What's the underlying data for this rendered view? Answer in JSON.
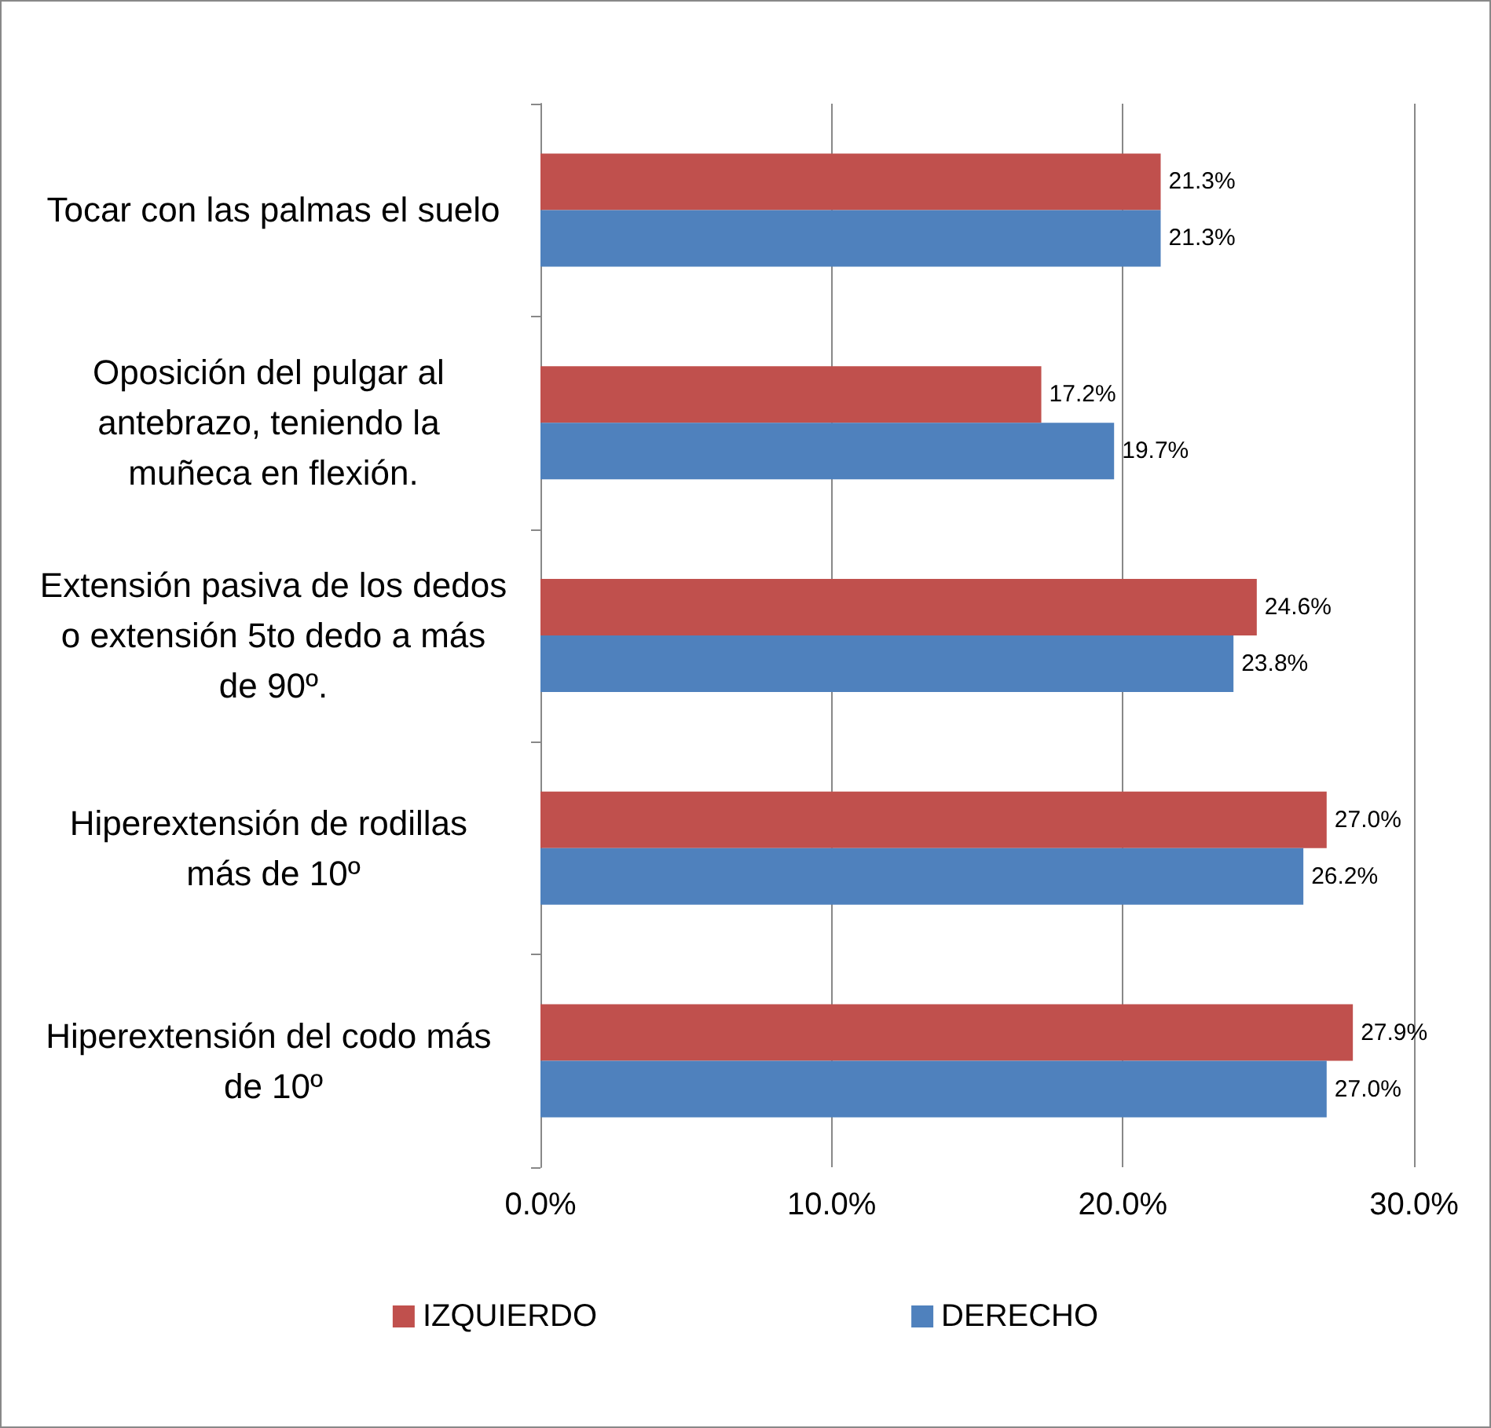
{
  "chart_data": {
    "type": "bar",
    "orientation": "horizontal",
    "categories": [
      "Tocar con las palmas el suelo",
      "Oposición del pulgar al antebrazo, teniendo la muñeca en flexión.",
      "Extensión pasiva de los dedos o extensión 5to dedo a más de 90º.",
      "Hiperextensión de rodillas más de 10º",
      "Hiperextensión del codo más de 10º"
    ],
    "series": [
      {
        "name": "IZQUIERDO",
        "color": "#c0504d",
        "values": [
          21.3,
          17.2,
          24.6,
          27.0,
          27.9
        ],
        "value_labels": [
          "21.3%",
          "17.2%",
          "24.6%",
          "27.0%",
          "27.9%"
        ]
      },
      {
        "name": "DERECHO",
        "color": "#4f81bd",
        "values": [
          21.3,
          19.7,
          23.8,
          26.2,
          27.0
        ],
        "value_labels": [
          "21.3%",
          "19.7%",
          "23.8%",
          "26.2%",
          "27.0%"
        ]
      }
    ],
    "xlim": [
      0,
      30
    ],
    "xticks": [
      {
        "value": 0,
        "label": "0.0%"
      },
      {
        "value": 10,
        "label": "10.0%"
      },
      {
        "value": 20,
        "label": "20.0%"
      },
      {
        "value": 30,
        "label": "30.0%"
      }
    ],
    "grid": "x",
    "legend": "bottom"
  }
}
